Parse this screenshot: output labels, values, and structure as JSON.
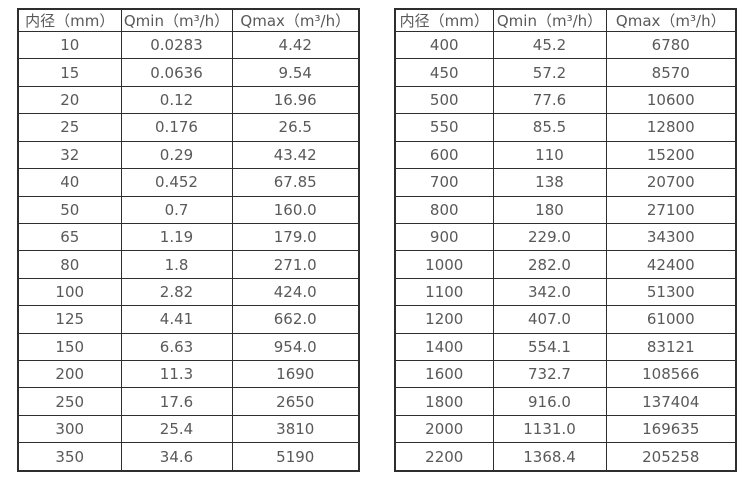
{
  "colors": {
    "border": "#2e2e2e",
    "text": "#595959",
    "background": "#ffffff"
  },
  "tables": [
    {
      "id": "flow-table-small-diameters",
      "headers": [
        "内径（mm）",
        "Qmin（m³/h）",
        "Qmax（m³/h）"
      ],
      "rows": [
        [
          "10",
          "0.0283",
          "4.42"
        ],
        [
          "15",
          "0.0636",
          "9.54"
        ],
        [
          "20",
          "0.12",
          "16.96"
        ],
        [
          "25",
          "0.176",
          "26.5"
        ],
        [
          "32",
          "0.29",
          "43.42"
        ],
        [
          "40",
          "0.452",
          "67.85"
        ],
        [
          "50",
          "0.7",
          "160.0"
        ],
        [
          "65",
          "1.19",
          "179.0"
        ],
        [
          "80",
          "1.8",
          "271.0"
        ],
        [
          "100",
          "2.82",
          "424.0"
        ],
        [
          "125",
          "4.41",
          "662.0"
        ],
        [
          "150",
          "6.63",
          "954.0"
        ],
        [
          "200",
          "11.3",
          "1690"
        ],
        [
          "250",
          "17.6",
          "2650"
        ],
        [
          "300",
          "25.4",
          "3810"
        ],
        [
          "350",
          "34.6",
          "5190"
        ]
      ]
    },
    {
      "id": "flow-table-large-diameters",
      "headers": [
        "内径（mm）",
        "Qmin（m³/h）",
        "Qmax（m³/h）"
      ],
      "rows": [
        [
          "400",
          "45.2",
          "6780"
        ],
        [
          "450",
          "57.2",
          "8570"
        ],
        [
          "500",
          "77.6",
          "10600"
        ],
        [
          "550",
          "85.5",
          "12800"
        ],
        [
          "600",
          "110",
          "15200"
        ],
        [
          "700",
          "138",
          "20700"
        ],
        [
          "800",
          "180",
          "27100"
        ],
        [
          "900",
          "229.0",
          "34300"
        ],
        [
          "1000",
          "282.0",
          "42400"
        ],
        [
          "1100",
          "342.0",
          "51300"
        ],
        [
          "1200",
          "407.0",
          "61000"
        ],
        [
          "1400",
          "554.1",
          "83121"
        ],
        [
          "1600",
          "732.7",
          "108566"
        ],
        [
          "1800",
          "916.0",
          "137404"
        ],
        [
          "2000",
          "1131.0",
          "169635"
        ],
        [
          "2200",
          "1368.4",
          "205258"
        ]
      ]
    }
  ]
}
